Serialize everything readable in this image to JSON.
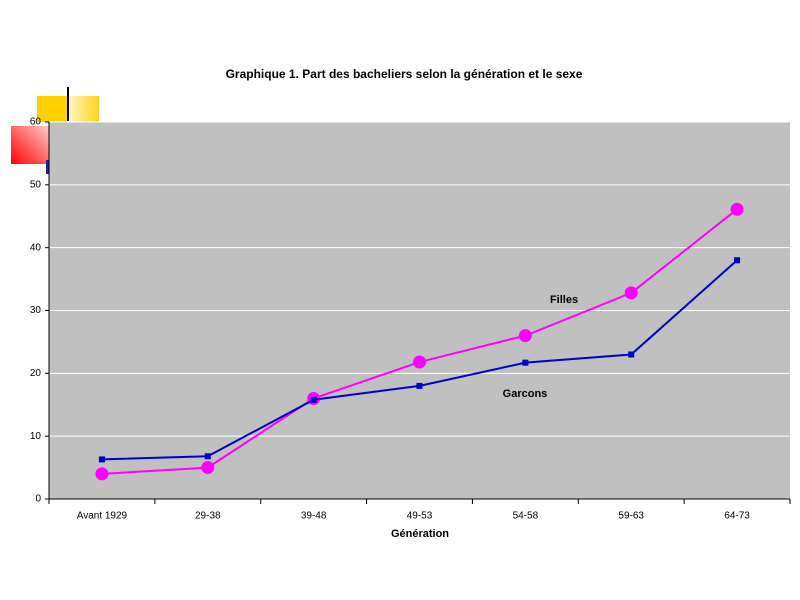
{
  "chart_data": {
    "type": "line",
    "title": "Graphique 1. Part des bacheliers selon la génération et le sexe",
    "x_label": "Génération",
    "categories": [
      "Avant 1929",
      "29-38",
      "39-48",
      "49-53",
      "54-58",
      "59-63",
      "64-73"
    ],
    "series": [
      {
        "name": "Filles",
        "color": "#ff00ff",
        "marker": "circle",
        "values": [
          4,
          5,
          16,
          21.8,
          26,
          32.8,
          46.1
        ]
      },
      {
        "name": "Garcons",
        "color": "#0000cc",
        "marker": "square",
        "values": [
          6.3,
          6.8,
          15.8,
          18,
          21.7,
          23,
          38
        ]
      }
    ],
    "ylim": [
      0,
      60
    ],
    "yticks": [
      0,
      10,
      20,
      30,
      40,
      50,
      60
    ],
    "grid": true
  }
}
